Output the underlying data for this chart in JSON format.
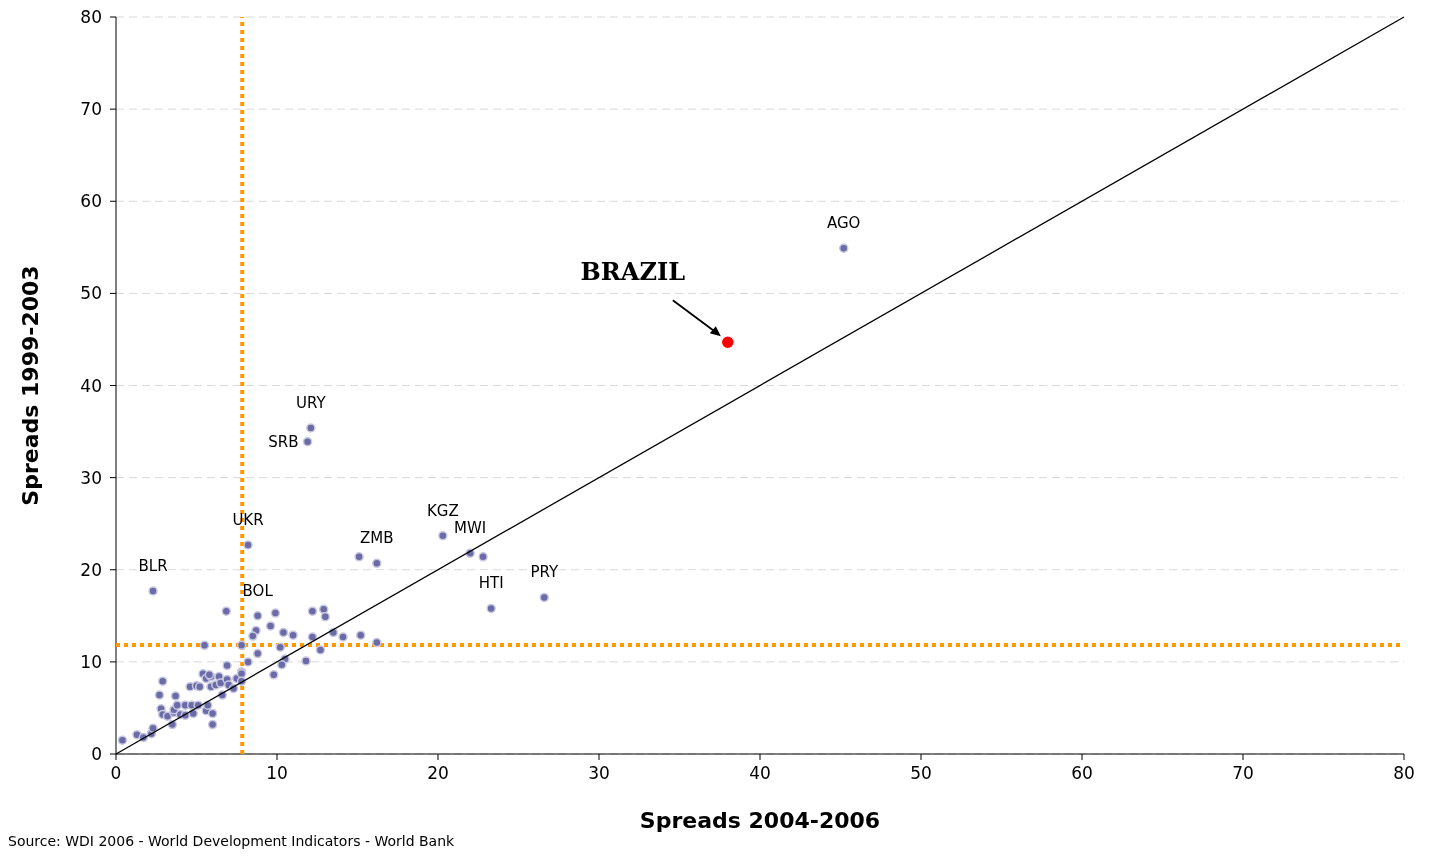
{
  "chart_data": {
    "type": "scatter",
    "xlabel": "Spreads 2004-2006",
    "ylabel": "Spreads 1999-2003",
    "xlim": [
      0,
      80
    ],
    "ylim": [
      0,
      80
    ],
    "xticks": [
      0,
      10,
      20,
      30,
      40,
      50,
      60,
      70,
      80
    ],
    "yticks": [
      0,
      10,
      20,
      30,
      40,
      50,
      60,
      70,
      80
    ],
    "grid": "y",
    "marker": "circle",
    "series": [
      {
        "color": "#6b6ba8",
        "x": [
          45.2,
          12.1,
          11.9,
          8.2,
          2.3,
          15.1,
          16.2,
          20.3,
          22.0,
          22.8,
          23.3,
          26.6,
          6.85,
          8.8,
          9.9,
          12.2,
          12.9,
          13.0,
          9.6,
          8.7,
          8.5,
          10.4,
          11.0,
          12.2,
          13.5,
          14.1,
          15.2,
          16.2,
          5.5,
          7.8,
          10.2,
          12.7,
          8.8,
          10.5,
          10.3,
          11.8,
          8.2,
          6.9,
          9.8,
          7.8,
          0.4,
          1.3,
          1.7,
          2.2,
          2.3,
          3.5,
          2.8,
          2.9,
          3.2,
          3.6,
          3.6,
          2.7,
          2.9,
          3.7,
          4.0,
          4.3,
          4.7,
          5.1,
          4.8,
          4.3,
          5.6,
          5.7,
          6.0,
          6.0,
          4.6,
          5.0,
          5.2,
          5.4,
          5.6,
          5.9,
          5.9,
          6.2,
          6.4,
          6.5,
          6.6,
          6.9,
          7.0,
          7.3,
          7.5,
          7.8,
          7.8,
          5.8,
          3.8
        ],
        "values": [
          54.9,
          35.4,
          33.9,
          22.7,
          17.7,
          21.4,
          20.7,
          23.7,
          21.8,
          21.4,
          15.8,
          17.0,
          15.5,
          15.0,
          15.3,
          15.5,
          15.7,
          14.9,
          13.9,
          13.4,
          12.8,
          13.2,
          12.9,
          12.7,
          13.2,
          12.7,
          12.9,
          12.1,
          11.8,
          11.8,
          11.6,
          11.3,
          10.9,
          10.3,
          9.7,
          10.1,
          10.0,
          9.6,
          8.6,
          8.9,
          1.5,
          2.1,
          1.8,
          2.2,
          2.8,
          3.2,
          4.9,
          4.3,
          4.1,
          4.5,
          4.8,
          6.4,
          7.9,
          6.3,
          4.3,
          5.3,
          5.3,
          5.3,
          4.4,
          4.2,
          4.7,
          5.3,
          4.4,
          3.2,
          7.3,
          7.4,
          7.3,
          8.7,
          8.2,
          7.3,
          8.4,
          7.5,
          8.4,
          7.7,
          6.4,
          8.1,
          7.5,
          7.1,
          8.2,
          8.7,
          7.9,
          8.6,
          5.3
        ]
      },
      {
        "color": "#ff0000",
        "x": [
          38.0
        ],
        "values": [
          44.7
        ]
      },
      {
        "type": "line",
        "color": "#000000",
        "x": [
          0,
          80
        ],
        "values": [
          0,
          80
        ],
        "marker": "none"
      }
    ],
    "ref_lines": [
      {
        "axis": "x",
        "value": 7.84,
        "color": "#ff9900",
        "line_style": "dotted"
      },
      {
        "axis": "y",
        "value": 11.84,
        "color": "#ff9900",
        "line_style": "dotted"
      }
    ],
    "annotations": [
      {
        "text": "AGO",
        "x": 45.2,
        "y": 54.9
      },
      {
        "text": "BRAZIL",
        "x": 38.0,
        "y": 44.7
      },
      {
        "text": "URY",
        "x": 12.1,
        "y": 35.4
      },
      {
        "text": "SRB",
        "x": 11.9,
        "y": 33.9
      },
      {
        "text": "UKR",
        "x": 8.2,
        "y": 22.7
      },
      {
        "text": "BLR",
        "x": 2.3,
        "y": 17.7
      },
      {
        "text": "ZMB",
        "x": 16.2,
        "y": 20.7
      },
      {
        "text": "KGZ",
        "x": 20.3,
        "y": 23.7
      },
      {
        "text": "MWI",
        "x": 22.0,
        "y": 21.8
      },
      {
        "text": "HTI",
        "x": 23.3,
        "y": 15.8
      },
      {
        "text": "PRY",
        "x": 26.6,
        "y": 17.0
      },
      {
        "text": "BOL",
        "x": 8.8,
        "y": 15.0
      },
      "Source: WDI 2006 - World Development Indicators - World Bank"
    ]
  }
}
